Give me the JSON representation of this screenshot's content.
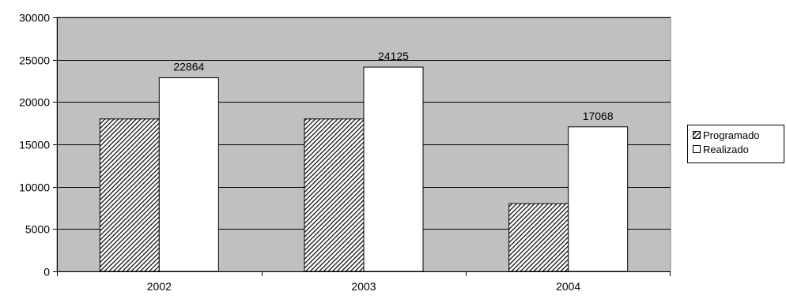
{
  "chart_data": {
    "type": "bar",
    "categories": [
      "2002",
      "2003",
      "2004"
    ],
    "series": [
      {
        "name": "Programado",
        "values": [
          18000,
          18000,
          8000
        ],
        "fill": "hatched",
        "color": "#000000",
        "show_labels": false
      },
      {
        "name": "Realizado",
        "values": [
          22864,
          24125,
          17068
        ],
        "fill": "solid",
        "color": "#ffffff",
        "show_labels": true
      }
    ],
    "data_labels": [
      "22864",
      "24125",
      "17068"
    ],
    "yticks": [
      0,
      5000,
      10000,
      15000,
      20000,
      25000,
      30000
    ],
    "ylim": [
      0,
      30000
    ],
    "title": "",
    "xlabel": "",
    "ylabel": "",
    "grid": true,
    "legend_position": "right",
    "plot_background": "#c0c0c0"
  }
}
